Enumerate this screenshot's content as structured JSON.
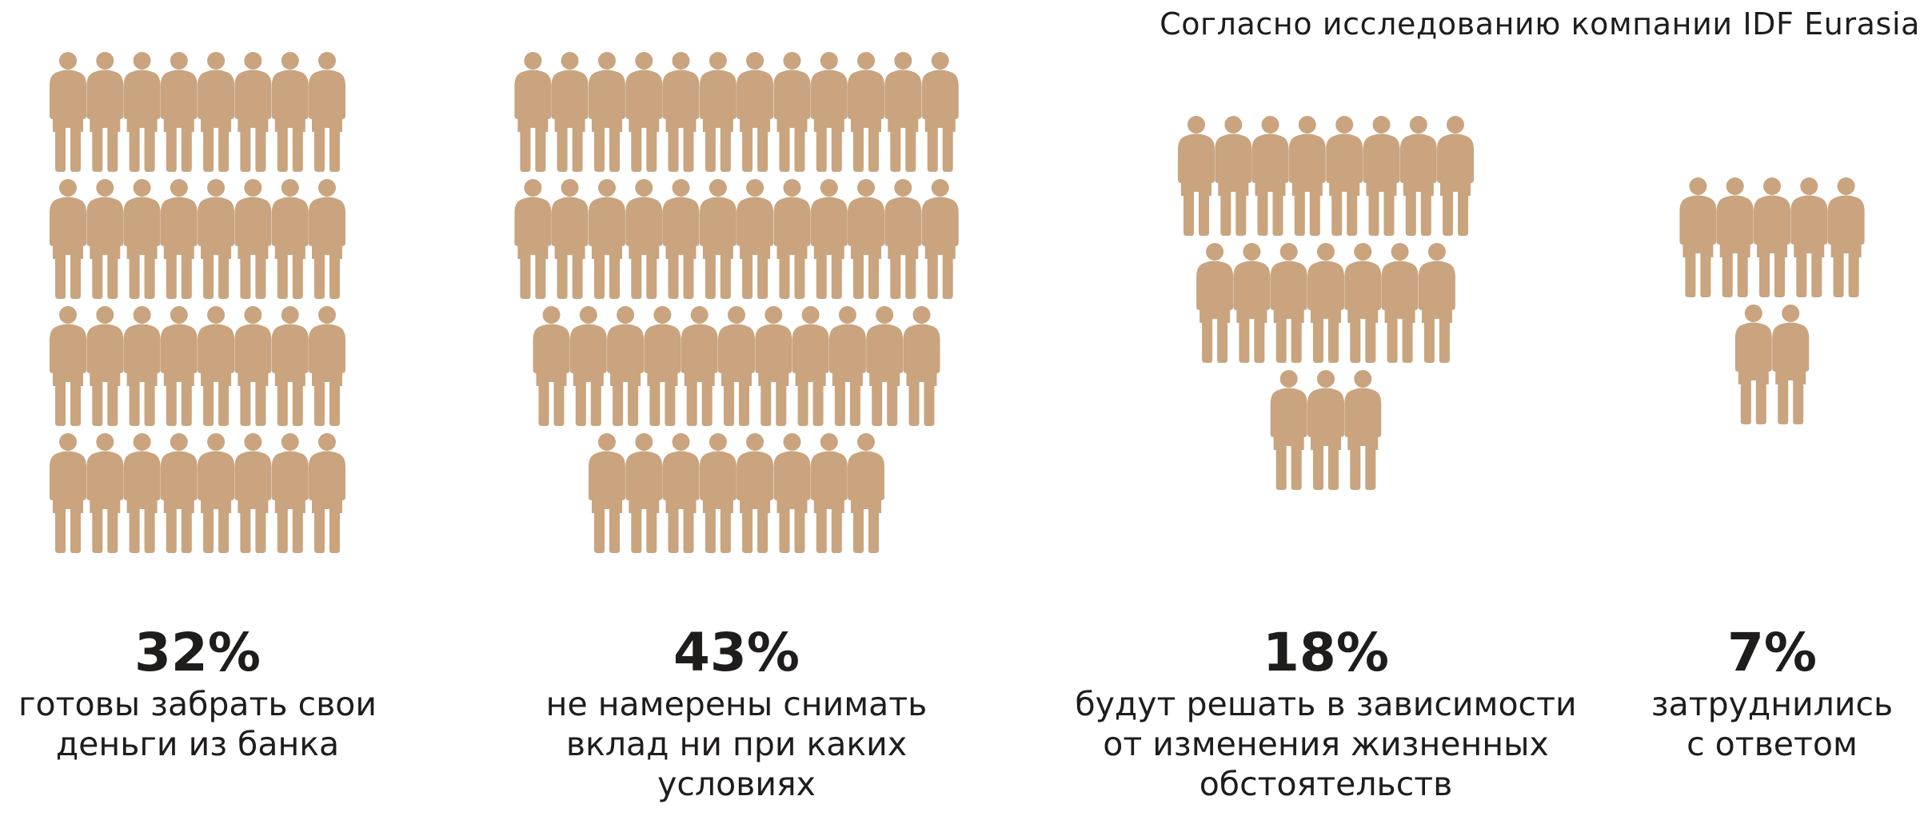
{
  "source_note": "Согласно исследованию компании IDF Eurasia",
  "colors": {
    "icon": "#c9a47e",
    "text": "#1f1c1c",
    "background": "#ffffff"
  },
  "icon": "person-icon",
  "chart_data": {
    "type": "pictogram",
    "unit_icon": "person-icon",
    "categories": [
      {
        "value_label": "32%",
        "value": 32,
        "icon_count": 32,
        "rows": [
          8,
          8,
          8,
          8
        ],
        "label_lines": [
          "готовы забрать свои",
          "деньги из банка"
        ]
      },
      {
        "value_label": "43%",
        "value": 43,
        "icon_count": 43,
        "rows": [
          12,
          12,
          11,
          8
        ],
        "label_lines": [
          "не намерены снимать",
          "вклад ни при каких",
          "условиях"
        ]
      },
      {
        "value_label": "18%",
        "value": 18,
        "icon_count": 18,
        "rows": [
          8,
          7,
          3
        ],
        "label_lines": [
          "будут решать в зависимости",
          "от изменения жизненных",
          "обстоятельств"
        ]
      },
      {
        "value_label": "7%",
        "value": 7,
        "icon_count": 7,
        "rows": [
          5,
          2
        ],
        "label_lines": [
          "затруднились",
          "с ответом"
        ]
      }
    ]
  }
}
